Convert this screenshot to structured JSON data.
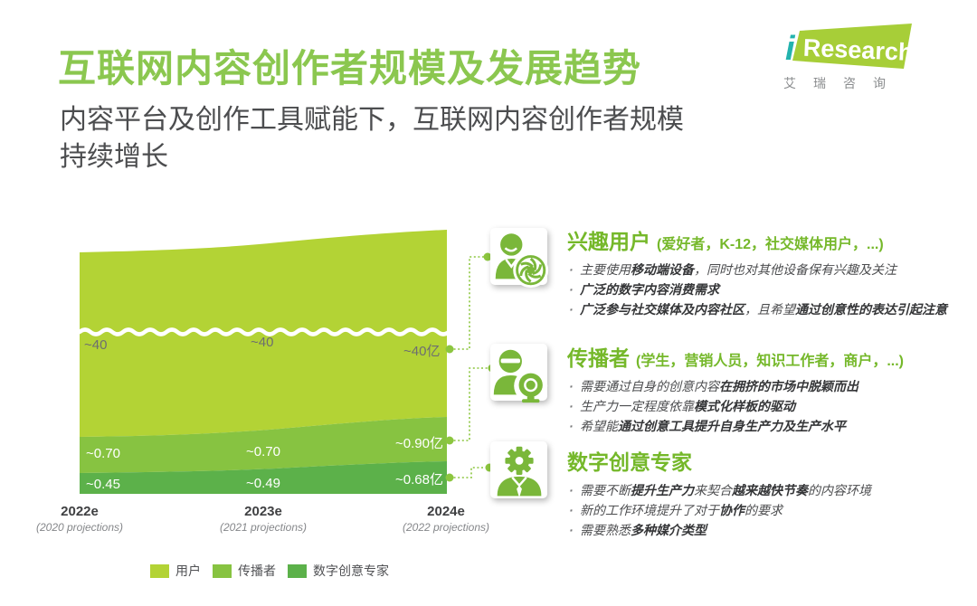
{
  "colors": {
    "title_green": "#8bc74f",
    "heading_green": "#75b82a",
    "icon_green": "#7ab73a",
    "connector_green": "#8cc63f",
    "text_dark": "#4c4d4f",
    "text_bold": "#353638",
    "label_gray": "#6d6e70",
    "logo_green": "#a7ce38",
    "logo_teal": "#23b3ae"
  },
  "header": {
    "title": "互联网内容创作者规模及发展趋势",
    "subtitle_line1": "内容平台及创作工具赋能下，互联网内容创作者规模",
    "subtitle_line2": "持续增长"
  },
  "logo": {
    "i": "i",
    "brand": "Research",
    "cn": "艾瑞咨询"
  },
  "chart_data": {
    "type": "area",
    "stacked": true,
    "unit": "亿",
    "title": "互联网内容创作者规模及发展趋势",
    "axis_break_on_series": "用户",
    "categories": [
      "2022e",
      "2023e",
      "2024e"
    ],
    "category_notes": [
      "(2020 projections)",
      "(2021 projections)",
      "(2022 projections)"
    ],
    "series": [
      {
        "name": "用户",
        "values": [
          40,
          40,
          40
        ],
        "labels": [
          "~40",
          "~40",
          "~40亿"
        ],
        "color": "#b3d335"
      },
      {
        "name": "传播者",
        "values": [
          0.7,
          0.7,
          0.9
        ],
        "labels": [
          "~0.70",
          "~0.70",
          "~0.90亿"
        ],
        "color": "#87c341"
      },
      {
        "name": "数字创意专家",
        "values": [
          0.45,
          0.49,
          0.68
        ],
        "labels": [
          "~0.45",
          "~0.49",
          "~0.68亿"
        ],
        "color": "#5cb14a"
      }
    ],
    "legend_position": "bottom"
  },
  "sections": [
    {
      "icon": "interest-user-icon",
      "title": "兴趣用户",
      "subtitle": "(爱好者，K-12，社交媒体用户，...)",
      "bullets": [
        [
          {
            "t": "主要使用"
          },
          {
            "t": "移动端设备",
            "b": true
          },
          {
            "t": "，同时也对其他设备保有兴趣及关注"
          }
        ],
        [
          {
            "t": "广泛的数字内容消费需求",
            "b": true
          }
        ],
        [
          {
            "t": "广泛参与社交媒体及内容社区",
            "b": true
          },
          {
            "t": "，且希望"
          },
          {
            "t": "通过创意性的表达引起注意",
            "b": true
          }
        ]
      ]
    },
    {
      "icon": "spreader-icon",
      "title": "传播者",
      "subtitle": "(学生，营销人员，知识工作者，商户，...)",
      "bullets": [
        [
          {
            "t": "需要通过自身的创意内容"
          },
          {
            "t": "在拥挤的市场中脱颖而出",
            "b": true
          }
        ],
        [
          {
            "t": "生产力一定程度依靠"
          },
          {
            "t": "模式化样板的驱动",
            "b": true
          }
        ],
        [
          {
            "t": "希望能"
          },
          {
            "t": "通过创意工具提升自身生产力及生产水平",
            "b": true
          }
        ]
      ]
    },
    {
      "icon": "digital-expert-icon",
      "title": "数字创意专家",
      "subtitle": "",
      "bullets": [
        [
          {
            "t": "需要不断"
          },
          {
            "t": "提升生产力",
            "b": true
          },
          {
            "t": "来契合"
          },
          {
            "t": "越来越快节奏",
            "b": true
          },
          {
            "t": "的内容环境"
          }
        ],
        [
          {
            "t": "新的工作环境提升了对于"
          },
          {
            "t": "协作",
            "b": true
          },
          {
            "t": "的要求"
          }
        ],
        [
          {
            "t": "需要熟悉"
          },
          {
            "t": "多种媒介类型",
            "b": true
          }
        ]
      ]
    }
  ]
}
